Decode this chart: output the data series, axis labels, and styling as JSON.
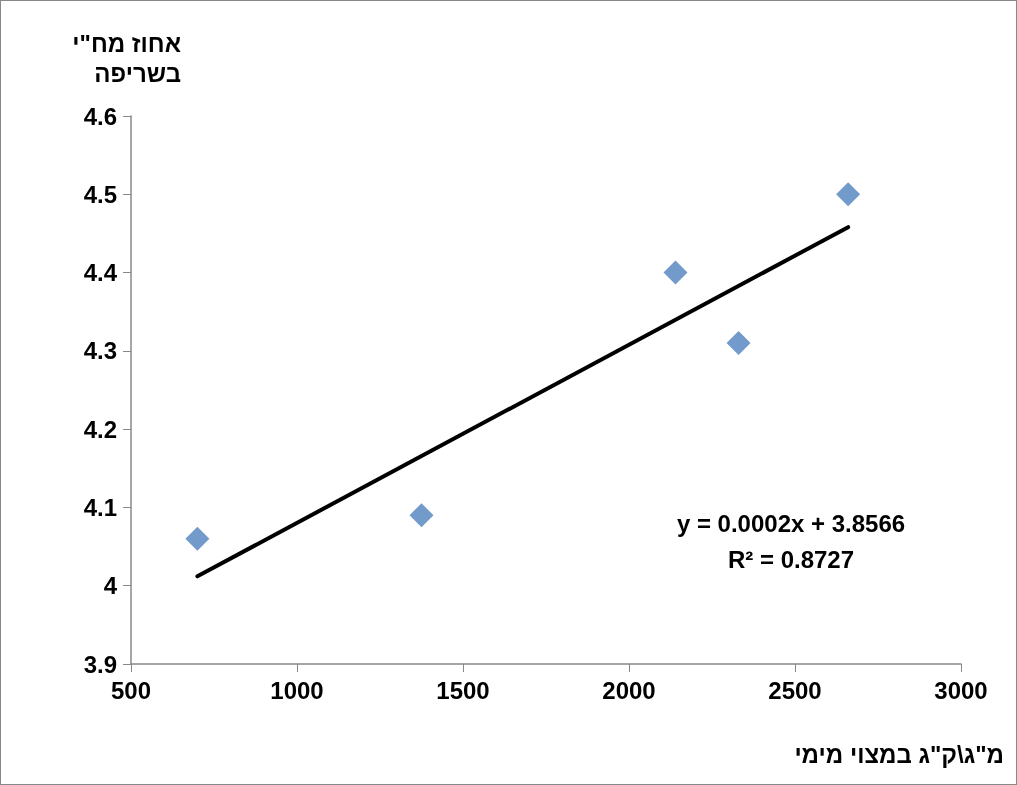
{
  "chart_data": {
    "type": "scatter",
    "ylabel": "אחוז מח\"י בשריפה",
    "xlabel": "מ\"ג\\ק\"ג במצוי מימי",
    "marker": "diamond",
    "annotations": [
      "y = 0.0002x + 3.8566",
      "R² = 0.8727"
    ],
    "xlim": [
      500,
      3000
    ],
    "xticks": [
      500,
      1000,
      1500,
      2000,
      2500,
      3000
    ],
    "ylim": [
      3.9,
      4.6
    ],
    "yticks": [
      3.9,
      4,
      4.1,
      4.2,
      4.3,
      4.4,
      4.5,
      4.6
    ],
    "series": [
      {
        "color": "#4f81bd",
        "x": [
          700,
          1375,
          2140,
          2330,
          2660
        ],
        "values": [
          4.06,
          4.09,
          4.4,
          4.31,
          4.5
        ]
      },
      {
        "type": "line",
        "color": "#000000",
        "marker": "none",
        "line_style": "solid",
        "x": [
          700,
          2660
        ],
        "values": [
          4.012,
          4.458
        ]
      }
    ]
  }
}
